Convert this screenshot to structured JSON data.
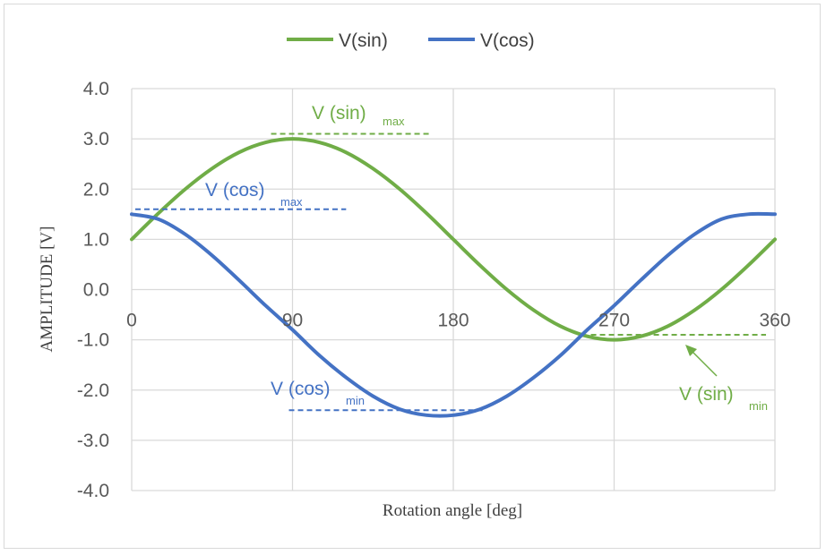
{
  "chart_data": {
    "type": "line",
    "title": "",
    "xlabel": "Rotation angle [deg]",
    "ylabel": "AMPLITUDE [V]",
    "xlim": [
      0,
      360
    ],
    "ylim": [
      -4,
      4
    ],
    "x_ticks": [
      "0",
      "90",
      "180",
      "270",
      "360"
    ],
    "y_ticks": [
      "4.0",
      "3.0",
      "2.0",
      "1.0",
      "0.0",
      "-1.0",
      "-2.0",
      "-3.0",
      "-4.0"
    ],
    "grid": true,
    "legend_position": "top",
    "x": [
      0,
      15,
      30,
      45,
      60,
      75,
      90,
      105,
      120,
      135,
      150,
      165,
      180,
      195,
      210,
      225,
      240,
      255,
      270,
      285,
      300,
      315,
      330,
      345,
      360
    ],
    "series": [
      {
        "name": "V(sin)",
        "color": "#70ad47",
        "values": [
          1.0,
          1.52,
          2.0,
          2.41,
          2.73,
          2.93,
          3.0,
          2.93,
          2.73,
          2.41,
          2.0,
          1.52,
          1.0,
          0.48,
          0.0,
          -0.41,
          -0.73,
          -0.93,
          -1.0,
          -0.93,
          -0.73,
          -0.41,
          0.0,
          0.48,
          1.0
        ]
      },
      {
        "name": "V(cos)",
        "color": "#4472c4",
        "values": [
          1.5,
          1.4,
          1.1,
          0.68,
          0.19,
          -0.32,
          -0.8,
          -1.31,
          -1.75,
          -2.12,
          -2.38,
          -2.5,
          -2.5,
          -2.38,
          -2.12,
          -1.75,
          -1.31,
          -0.8,
          -0.32,
          0.19,
          0.68,
          1.1,
          1.4,
          1.5,
          1.5
        ]
      }
    ],
    "annotations": [
      {
        "id": "sin_max",
        "text": "V (sin)",
        "sub": "max",
        "color": "#70ad47",
        "y": 3.1,
        "x_from": 78,
        "x_to": 168
      },
      {
        "id": "cos_max",
        "text": "V (cos)",
        "sub": "max",
        "color": "#4472c4",
        "y": 1.6,
        "x_from": 2,
        "x_to": 120
      },
      {
        "id": "cos_min",
        "text": "V (cos)",
        "sub": "min",
        "color": "#4472c4",
        "y": -2.4,
        "x_from": 88,
        "x_to": 198
      },
      {
        "id": "sin_min",
        "text": "V (sin)",
        "sub": "min",
        "color": "#70ad47",
        "y": -0.9,
        "x_from": 257,
        "x_to": 355
      }
    ]
  }
}
